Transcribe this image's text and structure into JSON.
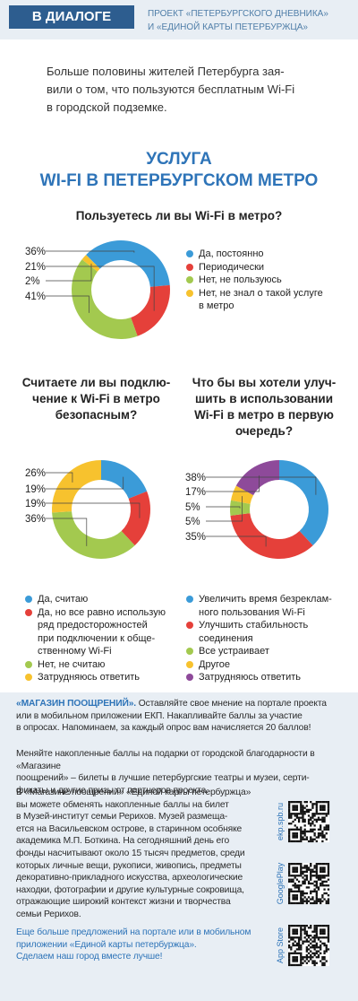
{
  "header": {
    "tag": "В ДИАЛОГЕ",
    "project": "ПРОЕКТ «ПЕТЕРБУРГСКОГО ДНЕВНИКА»\nИ «ЕДИНОЙ КАРТЫ ПЕТЕРБУРЖЦА»"
  },
  "intro": "Больше половины жителей Петербурга зая-\nвили о том, что пользуются бесплатным Wi-Fi\nв городской подземке.",
  "title": "УСЛУГА\nWI-FI В ПЕТЕРБУРГСКОМ МЕТРО",
  "chart_data": [
    {
      "type": "pie",
      "title": "Пользуетесь ли вы Wi-Fi в метро?",
      "categories": [
        "Да, постоянно",
        "Периодически",
        "Нет, не пользуюсь",
        "Нет, не знал о такой услуге\nв метро"
      ],
      "values": [
        36,
        21,
        41,
        2
      ],
      "value_labels": [
        "36%",
        "21%",
        "41%",
        "2%"
      ],
      "colors": [
        "#3b9bd8",
        "#e5403a",
        "#a3c94f",
        "#f7c22e"
      ]
    },
    {
      "type": "pie",
      "title": "Считаете ли вы подклю-\nчение к Wi-Fi в метро\nбезопасным?",
      "categories": [
        "Да, считаю",
        "Да, но все равно использую\nряд предосторожностей\nпри подключении к обще-\nственному Wi-Fi",
        "Нет, не считаю",
        "Затрудняюсь ответить"
      ],
      "values": [
        19,
        19,
        36,
        26
      ],
      "value_labels": [
        "19%",
        "19%",
        "36%",
        "26%"
      ],
      "colors": [
        "#3b9bd8",
        "#e5403a",
        "#a3c94f",
        "#f7c22e"
      ]
    },
    {
      "type": "pie",
      "title": "Что бы вы хотели улуч-\nшить в использовании\nWi-Fi в метро в первую\nочередь?",
      "categories": [
        "Увеличить время безреклам-\nного пользования Wi-Fi",
        "Улучшить стабильность\nсоединения",
        "Все устраивает",
        "Другое",
        "Затрудняюсь ответить"
      ],
      "values": [
        38,
        35,
        5,
        5,
        17
      ],
      "value_labels": [
        "38%",
        "35%",
        "5%",
        "5%",
        "17%"
      ],
      "colors": [
        "#3b9bd8",
        "#e5403a",
        "#a3c94f",
        "#f7c22e",
        "#8e4a9a"
      ]
    }
  ],
  "footer": {
    "lead": "«МАГАЗИН ПООЩРЕНИЙ».",
    "p1": " Оставляйте свое мнение на портале проекта\nили в мобильном приложении ЕКП. Накапливайте баллы за участие\nв опросах. Напоминаем, за каждый опрос вам начисляется 20 баллов!",
    "p2": "Меняйте накопленные баллы на подарки от городской благодарности в «Магазине\nпоощрений» – билеты в лучшие петербургские театры и музеи, серти-\nфикаты и другие призы от партнеров проекта.",
    "p3": "В «Магазине поощрений» «Единой карты петербуржца»\nвы можете обменять накопленные баллы на билет\nв Музей-институт семьи Рерихов. Музей размеща-\nется на Васильевском острове, в старинном особняке\nакадемика М.П. Боткина. На сегодняшний день его\nфонды насчитывают около 15 тысяч предметов, среди\nкоторых личные вещи, рукописи, живопись, предметы\nдекоративно-прикладного искусства, археологические\nнаходки, фотографии и другие культурные сокровища,\nотражающие широкий контекст жизни и творчества\nсемьи Рерихов.",
    "p4": "Еще больше предложений на портале или в мобильном\nприложении «Единой карты петербуржца».\nСделаем наш город вместе лучше!",
    "qr_labels": [
      "ekp.spb.ru",
      "GooglePlay",
      "App Store"
    ]
  }
}
